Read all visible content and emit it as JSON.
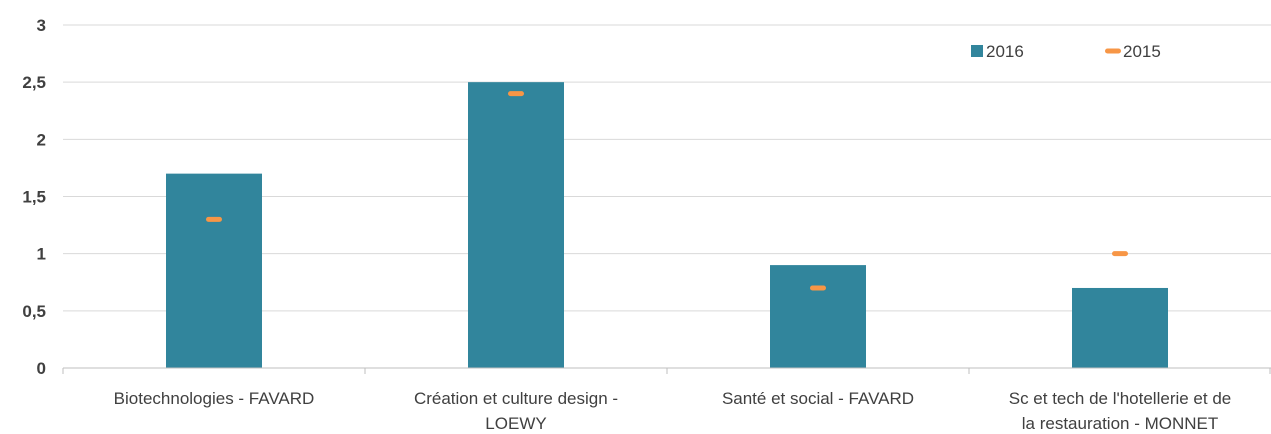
{
  "chart_data": {
    "type": "bar",
    "categories": [
      [
        "Biotechnologies - FAVARD"
      ],
      [
        "Création et culture design -",
        "LOEWY"
      ],
      [
        "Santé et social - FAVARD"
      ],
      [
        "Sc et tech de l'hotellerie et de",
        "la restauration - MONNET"
      ]
    ],
    "series": [
      {
        "name": "2016",
        "kind": "bar",
        "color": "#31859c",
        "values": [
          1.7,
          2.5,
          0.9,
          0.7
        ]
      },
      {
        "name": "2015",
        "kind": "marker",
        "color": "#f79646",
        "values": [
          1.3,
          2.4,
          0.7,
          1.0
        ]
      }
    ],
    "y_ticks": [
      "0",
      "0,5",
      "1",
      "1,5",
      "2",
      "2,5",
      "3"
    ],
    "ylim": [
      0,
      3
    ],
    "grid": true,
    "legend_position": "top-right"
  }
}
